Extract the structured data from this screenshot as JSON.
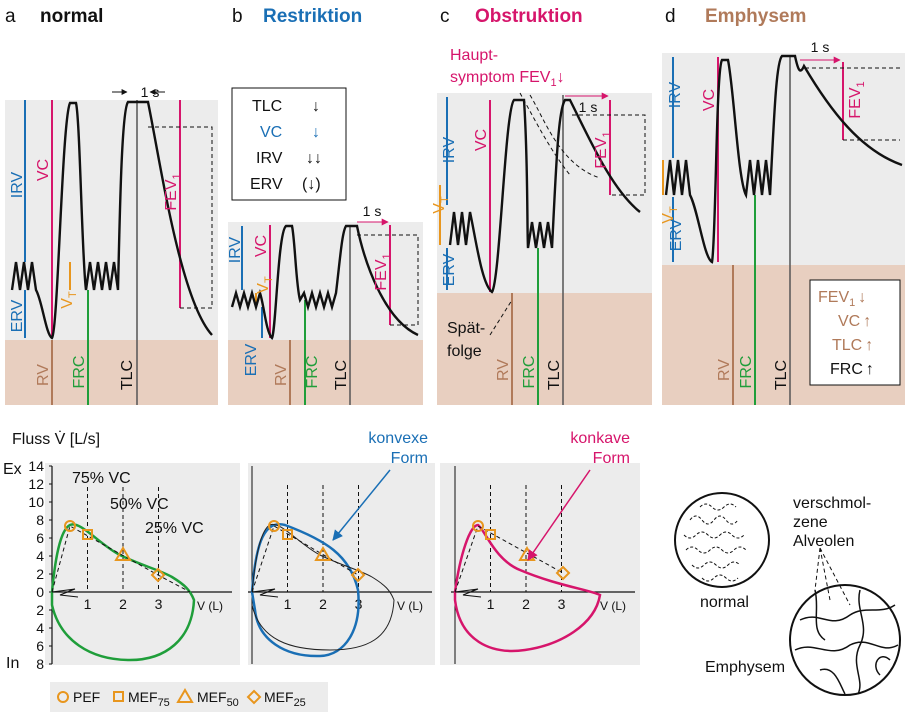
{
  "panels": [
    {
      "letter": "a",
      "title": "normal",
      "irv": "IRV",
      "vc": "VC",
      "erv": "ERV",
      "vt_main": "V",
      "vt_sub": "T",
      "rv": "RV",
      "frc": "FRC",
      "tlc": "TLC",
      "fev_main": "FEV",
      "fev_sub": "1",
      "time": "1 s"
    },
    {
      "letter": "b",
      "title": "Restriktion",
      "irv": "IRV",
      "vc": "VC",
      "erv": "ERV",
      "vt_main": "V",
      "vt_sub": "T",
      "rv": "RV",
      "frc": "FRC",
      "tlc": "TLC",
      "fev_main": "FEV",
      "fev_sub": "1",
      "time": "1 s",
      "box": [
        {
          "label": "TLC",
          "arrow": "↓"
        },
        {
          "label": "VC",
          "arrow": "↓"
        },
        {
          "label": "IRV",
          "arrow": "↓↓"
        },
        {
          "label": "ERV",
          "arrow": "(↓)"
        }
      ]
    },
    {
      "letter": "c",
      "title": "Obstruktion",
      "irv": "IRV",
      "vc": "VC",
      "erv": "ERV",
      "vt_main": "V",
      "vt_sub": "T",
      "rv": "RV",
      "frc": "FRC",
      "tlc": "TLC",
      "fev_main": "FEV",
      "fev_sub": "1",
      "time": "1 s",
      "note": {
        "line1": "Haupt-",
        "line2": "symptom FEV",
        "sub": "1",
        "arrow": "↓"
      },
      "late": {
        "line1": "Spät-",
        "line2": "folge"
      }
    },
    {
      "letter": "d",
      "title": "Emphysem",
      "irv": "IRV",
      "vc": "VC",
      "erv": "ERV",
      "vt_main": "V",
      "vt_sub": "T",
      "rv": "RV",
      "frc": "FRC",
      "tlc": "TLC",
      "fev_main": "FEV",
      "fev_sub": "1",
      "time": "1 s",
      "box": [
        {
          "label": "FEV",
          "sub": "1",
          "arrow": "↓"
        },
        {
          "label": "VC",
          "arrow": "↑"
        },
        {
          "label": "TLC",
          "arrow": "↑"
        },
        {
          "label": "FRC",
          "arrow": "↑"
        }
      ]
    }
  ],
  "flow": {
    "axis_label": "Fluss V̇ [L/s]",
    "ex": "Ex",
    "in": "In",
    "yticks_ex": [
      14,
      12,
      10,
      8,
      6,
      4,
      2,
      0
    ],
    "yticks_in": [
      2,
      4,
      6,
      8
    ],
    "xticks": [
      1,
      2,
      3
    ],
    "xlabel": "V (L)",
    "vc_labels": [
      "75% VC",
      "50% VC",
      "25% VC"
    ],
    "convex": [
      "konvexe",
      "Form"
    ],
    "concave": [
      "konkave",
      "Form"
    ]
  },
  "emphysema": {
    "fused": [
      "verschmol-",
      "zene",
      "Alveolen"
    ],
    "normal": "normal",
    "emphysem": "Emphysem"
  },
  "legend": [
    {
      "label": "PEF"
    },
    {
      "label": "MEF",
      "sub": "75"
    },
    {
      "label": "MEF",
      "sub": "50"
    },
    {
      "label": "MEF",
      "sub": "25"
    }
  ]
}
